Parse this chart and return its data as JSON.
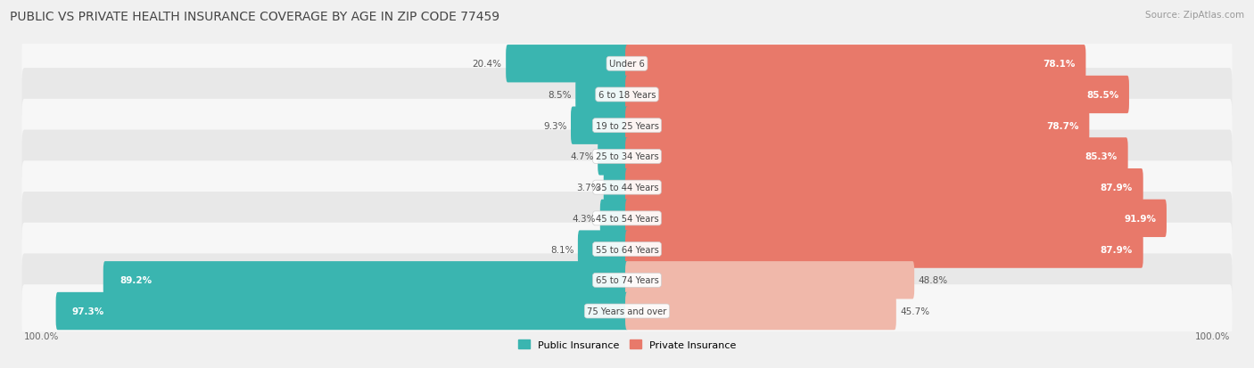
{
  "title": "PUBLIC VS PRIVATE HEALTH INSURANCE COVERAGE BY AGE IN ZIP CODE 77459",
  "source": "Source: ZipAtlas.com",
  "categories": [
    "Under 6",
    "6 to 18 Years",
    "19 to 25 Years",
    "25 to 34 Years",
    "35 to 44 Years",
    "45 to 54 Years",
    "55 to 64 Years",
    "65 to 74 Years",
    "75 Years and over"
  ],
  "public_values": [
    20.4,
    8.5,
    9.3,
    4.7,
    3.7,
    4.3,
    8.1,
    89.2,
    97.3
  ],
  "private_values": [
    78.1,
    85.5,
    78.7,
    85.3,
    87.9,
    91.9,
    87.9,
    48.8,
    45.7
  ],
  "public_color": "#3ab5b0",
  "private_color_full": "#e8796a",
  "private_color_light": "#f0b8aa",
  "background_color": "#f0f0f0",
  "row_bg_light": "#f7f7f7",
  "row_bg_dark": "#e8e8e8",
  "max_value": 100.0,
  "legend_labels": [
    "Public Insurance",
    "Private Insurance"
  ]
}
